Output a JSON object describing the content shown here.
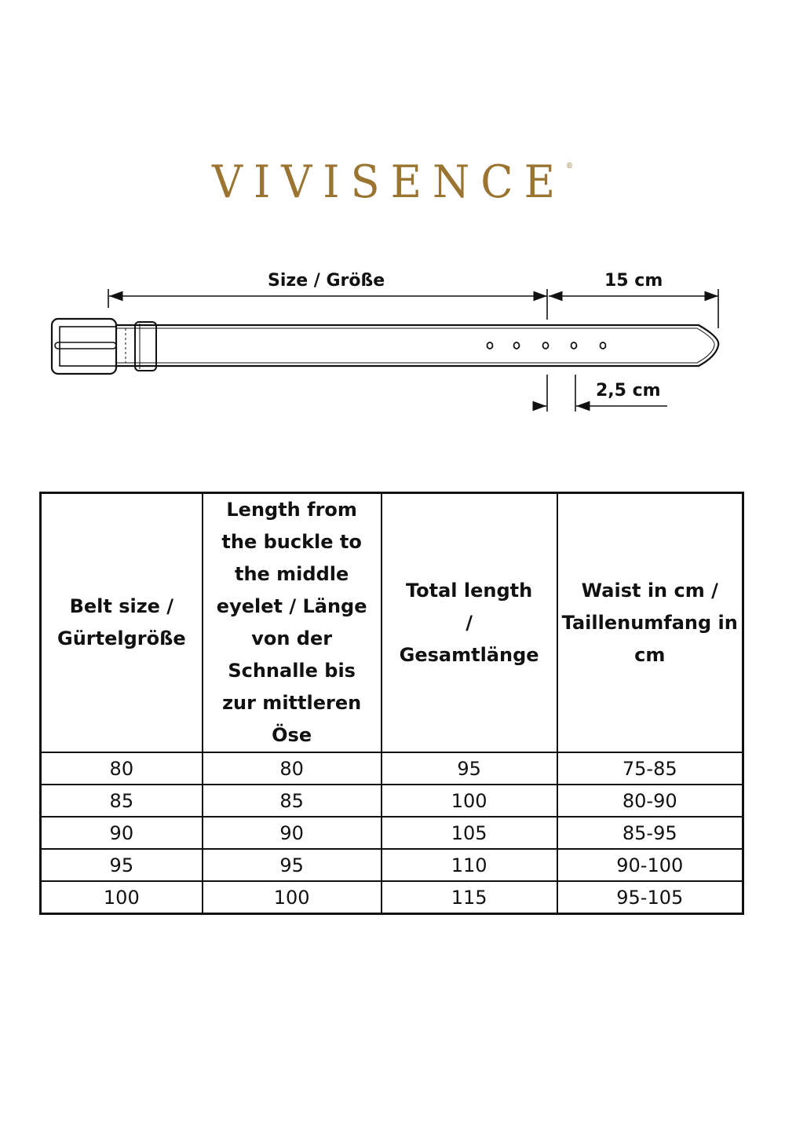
{
  "logo": {
    "text": "VIVISENCE",
    "mark": "®",
    "color": "#9a7430"
  },
  "diagram": {
    "size_label": "Size / Größe",
    "tip_label": "15 cm",
    "width_label": "2,5 cm",
    "eyelet_count": 5
  },
  "table": {
    "headers": [
      "Belt size / Gürtelgröße",
      "Length from the buckle to the middle eyelet / Länge von der Schnalle bis zur mittleren Öse",
      "Total length / Gesamtlänge",
      "Waist in cm / Taillenumfang in cm"
    ],
    "rows": [
      [
        "80",
        "80",
        "95",
        "75-85"
      ],
      [
        "85",
        "85",
        "100",
        "80-90"
      ],
      [
        "90",
        "90",
        "105",
        "85-95"
      ],
      [
        "95",
        "95",
        "110",
        "90-100"
      ],
      [
        "100",
        "100",
        "115",
        "95-105"
      ]
    ]
  }
}
